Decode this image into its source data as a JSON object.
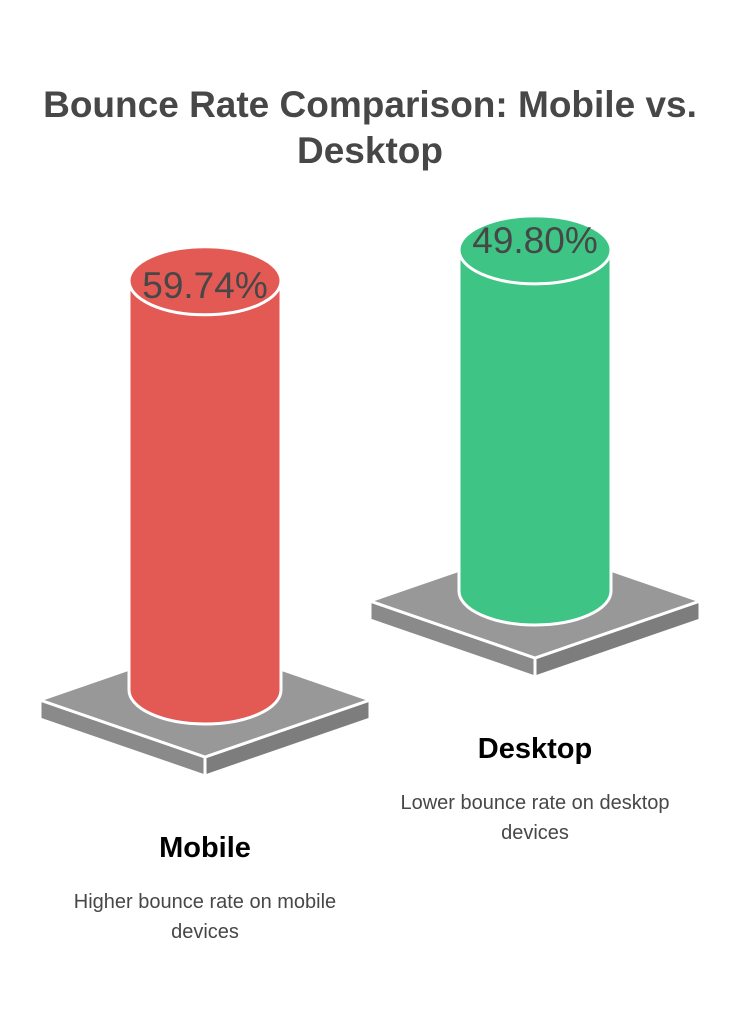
{
  "chart_data": {
    "type": "bar",
    "title": "Bounce Rate Comparison: Mobile vs. Desktop",
    "categories": [
      "Mobile",
      "Desktop"
    ],
    "values": [
      59.74,
      49.8
    ],
    "value_labels": [
      "59.74%",
      "49.80%"
    ],
    "descriptions": [
      "Higher bounce rate on mobile devices",
      "Lower bounce rate on desktop devices"
    ],
    "colors": [
      "#e35a55",
      "#3ec586"
    ],
    "pedestal_color": "#989898",
    "grid": false,
    "legend": "none"
  }
}
